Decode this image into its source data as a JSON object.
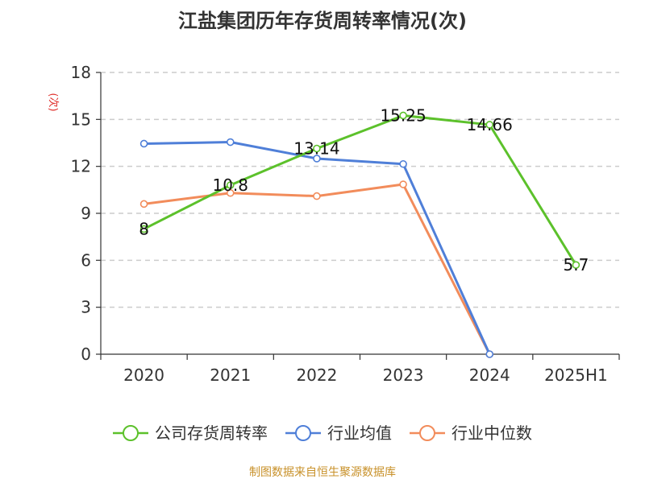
{
  "chart_data": {
    "type": "line",
    "title": "江盐集团历年存货周转率情况(次)",
    "ylabel": "(次)",
    "xlabel": "",
    "categories": [
      "2020",
      "2021",
      "2022",
      "2023",
      "2024",
      "2025H1"
    ],
    "ylim": [
      0,
      18
    ],
    "yticks": [
      0,
      3,
      6,
      9,
      12,
      15,
      18
    ],
    "grid": true,
    "legend_position": "bottom",
    "series": [
      {
        "name": "公司存货周转率",
        "color": "#5cc12b",
        "values": [
          8,
          10.8,
          13.14,
          15.25,
          14.66,
          5.7
        ],
        "labels": [
          "8",
          "10.8",
          "13.14",
          "15.25",
          "14.66",
          "5.7"
        ]
      },
      {
        "name": "行业均值",
        "color": "#4f7fd8",
        "values": [
          13.45,
          13.55,
          12.5,
          12.15,
          0,
          null
        ]
      },
      {
        "name": "行业中位数",
        "color": "#f28c5b",
        "values": [
          9.6,
          10.3,
          10.1,
          10.85,
          0,
          null
        ]
      }
    ]
  },
  "source": "制图数据来自恒生聚源数据库"
}
